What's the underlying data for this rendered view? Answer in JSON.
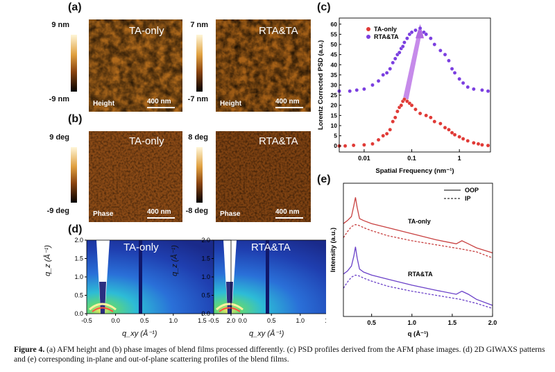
{
  "panels": {
    "a": {
      "label": "(a)",
      "left": {
        "title": "TA-only",
        "scale_max": "9 nm",
        "scale_min": "-9 nm",
        "mode": "Height",
        "scalebar": "400 nm"
      },
      "right": {
        "title": "RTA&TA",
        "scale_max": "7 nm",
        "scale_min": "-7 nm",
        "mode": "Height",
        "scalebar": "400 nm"
      }
    },
    "b": {
      "label": "(b)",
      "left": {
        "title": "TA-only",
        "scale_max": "9 deg",
        "scale_min": "-9 deg",
        "mode": "Phase",
        "scalebar": "400 nm"
      },
      "right": {
        "title": "RTA&TA",
        "scale_max": "8 deg",
        "scale_min": "-8 deg",
        "mode": "Phase",
        "scalebar": "400 nm"
      }
    },
    "c": {
      "label": "(c)"
    },
    "d": {
      "label": "(d)",
      "left_title": "TA-only",
      "right_title": "RTA&TA",
      "x_label": "q_xy (Å⁻¹)",
      "y_label": "q_z (Å⁻¹)",
      "x_ticks": [
        "-0.5",
        "0.0",
        "0.5",
        "1.0",
        "1.5",
        "2.0"
      ],
      "y_ticks": [
        "2.0",
        "1.5",
        "1.0",
        "0.5",
        "0.0"
      ]
    },
    "e": {
      "label": "(e)"
    }
  },
  "chart_data": [
    {
      "type": "scatter",
      "panel": "c",
      "xlabel": "Spatial Frequency (nm⁻¹)",
      "ylabel": "Lorentz Corrected PSD (a.u.)",
      "xscale": "log",
      "xlim": [
        0.003,
        4.5
      ],
      "ylim": [
        -3,
        63
      ],
      "x_ticks": [
        "0.01",
        "0.1",
        "1"
      ],
      "y_ticks": [
        "0",
        "5",
        "10",
        "15",
        "20",
        "25",
        "30",
        "35",
        "40",
        "45",
        "50",
        "55",
        "60"
      ],
      "legend": "top-left",
      "series": [
        {
          "name": "TA-only",
          "color": "#e03a36",
          "x": [
            0.003,
            0.004,
            0.006,
            0.01,
            0.015,
            0.02,
            0.025,
            0.03,
            0.035,
            0.04,
            0.045,
            0.05,
            0.055,
            0.06,
            0.065,
            0.07,
            0.08,
            0.09,
            0.1,
            0.12,
            0.15,
            0.2,
            0.25,
            0.3,
            0.4,
            0.5,
            0.6,
            0.7,
            0.8,
            1.0,
            1.2,
            1.5,
            2.0,
            2.5,
            3.0,
            4.0
          ],
          "y": [
            0,
            0,
            0.3,
            0.5,
            1,
            3,
            5,
            6,
            8,
            12,
            14,
            17,
            19,
            20,
            22,
            23,
            22,
            21,
            20,
            18,
            16,
            15,
            14,
            12,
            11,
            9,
            8,
            6.5,
            5.5,
            4.5,
            3.5,
            2.5,
            1.5,
            1,
            0.5,
            0.2
          ]
        },
        {
          "name": "RTA&TA",
          "color": "#7b3fe0",
          "x": [
            0.003,
            0.005,
            0.007,
            0.01,
            0.015,
            0.02,
            0.025,
            0.03,
            0.035,
            0.04,
            0.045,
            0.05,
            0.055,
            0.06,
            0.065,
            0.07,
            0.08,
            0.09,
            0.1,
            0.12,
            0.15,
            0.18,
            0.2,
            0.25,
            0.3,
            0.4,
            0.5,
            0.6,
            0.7,
            0.8,
            1.0,
            1.2,
            1.5,
            2.0,
            3.0,
            4.0
          ],
          "y": [
            27,
            27,
            27.5,
            28,
            30,
            32,
            35,
            36,
            38,
            41,
            43,
            45,
            46,
            48,
            49,
            51,
            53,
            55,
            56,
            57,
            58,
            56,
            55,
            53,
            50,
            47,
            45,
            42,
            38,
            36,
            33,
            31,
            29,
            28,
            27.5,
            27
          ]
        }
      ]
    },
    {
      "type": "line",
      "panel": "e",
      "xlabel": "q (Å⁻¹)",
      "ylabel": "Intensity (a.u.)",
      "xlim": [
        0.15,
        2.0
      ],
      "x_ticks": [
        "0.5",
        "1.0",
        "1.5",
        "2.0"
      ],
      "legend": "top-right",
      "legend_entries": [
        "OOP",
        "IP"
      ],
      "curve_labels": [
        "TA-only",
        "RTA&TA"
      ],
      "series": [
        {
          "name": "TA-only OOP",
          "color": "#c84040",
          "dash": false,
          "x": [
            0.15,
            0.2,
            0.25,
            0.28,
            0.3,
            0.32,
            0.35,
            0.4,
            0.5,
            0.7,
            1.0,
            1.3,
            1.55,
            1.62,
            1.7,
            1.8,
            2.0
          ],
          "y": [
            7.6,
            7.75,
            7.95,
            8.5,
            8.9,
            8.4,
            7.85,
            7.75,
            7.6,
            7.4,
            7.1,
            6.8,
            6.6,
            6.75,
            6.6,
            6.4,
            6.15
          ]
        },
        {
          "name": "TA-only IP",
          "color": "#c84040",
          "dash": true,
          "x": [
            0.15,
            0.2,
            0.25,
            0.3,
            0.35,
            0.4,
            0.5,
            0.7,
            1.0,
            1.3,
            1.6,
            1.8,
            2.0
          ],
          "y": [
            6.9,
            7.2,
            7.45,
            7.55,
            7.5,
            7.4,
            7.25,
            7.0,
            6.75,
            6.55,
            6.35,
            6.2,
            5.9
          ]
        },
        {
          "name": "RTA&TA OOP",
          "color": "#6a40c8",
          "dash": false,
          "x": [
            0.15,
            0.2,
            0.25,
            0.28,
            0.3,
            0.32,
            0.35,
            0.4,
            0.5,
            0.7,
            1.0,
            1.3,
            1.55,
            1.62,
            1.7,
            1.8,
            2.0
          ],
          "y": [
            5.1,
            5.25,
            5.5,
            6.0,
            6.45,
            5.9,
            5.35,
            5.2,
            5.05,
            4.85,
            4.55,
            4.3,
            4.1,
            4.25,
            4.1,
            3.85,
            3.55
          ]
        },
        {
          "name": "RTA&TA IP",
          "color": "#6a40c8",
          "dash": true,
          "x": [
            0.15,
            0.2,
            0.25,
            0.3,
            0.35,
            0.4,
            0.5,
            0.7,
            1.0,
            1.3,
            1.6,
            1.8,
            2.0
          ],
          "y": [
            4.4,
            4.7,
            4.95,
            5.05,
            5.0,
            4.9,
            4.75,
            4.5,
            4.25,
            4.05,
            3.85,
            3.65,
            3.4
          ]
        }
      ]
    }
  ],
  "caption": {
    "fig": "Figure 4.",
    "text": "(a) AFM height and (b) phase images of blend films processed differently. (c) PSD profiles derived from the AFM phase images. (d) 2D GIWAXS patterns and (e) corresponding in-plane and out-of-plane scattering profiles of the blend films."
  }
}
